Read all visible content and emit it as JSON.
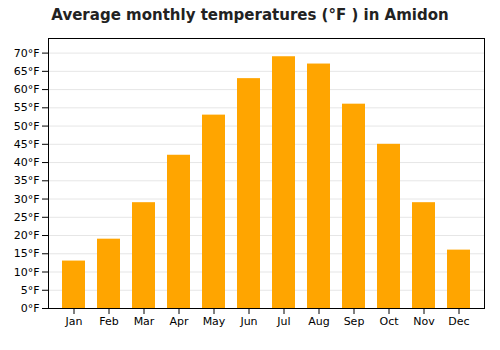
{
  "chart_data": {
    "type": "bar",
    "title": "Average monthly temperatures (°F ) in Amidon",
    "categories": [
      "Jan",
      "Feb",
      "Mar",
      "Apr",
      "May",
      "Jun",
      "Jul",
      "Aug",
      "Sep",
      "Oct",
      "Nov",
      "Dec"
    ],
    "values": [
      13,
      19,
      29,
      42,
      53,
      63,
      69,
      67,
      56,
      45,
      29,
      16
    ],
    "color": "#FFA500",
    "ylim": [
      0,
      74
    ],
    "yticks": [
      {
        "value": 0,
        "label": "0°F"
      },
      {
        "value": 5,
        "label": "5°F"
      },
      {
        "value": 10,
        "label": "10°F"
      },
      {
        "value": 15,
        "label": "15°F"
      },
      {
        "value": 20,
        "label": "20°F"
      },
      {
        "value": 25,
        "label": "25°F"
      },
      {
        "value": 30,
        "label": "30°F"
      },
      {
        "value": 35,
        "label": "35°F"
      },
      {
        "value": 40,
        "label": "40°F"
      },
      {
        "value": 45,
        "label": "45°F"
      },
      {
        "value": 50,
        "label": "50°F"
      },
      {
        "value": 55,
        "label": "55°F"
      },
      {
        "value": 60,
        "label": "60°F"
      },
      {
        "value": 65,
        "label": "65°F"
      },
      {
        "value": 70,
        "label": "70°F"
      }
    ],
    "grid": true
  }
}
